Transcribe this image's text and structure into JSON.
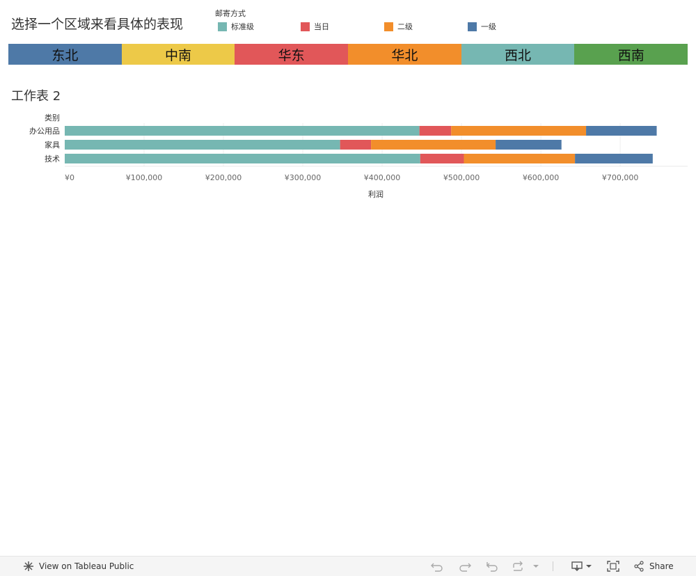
{
  "dashboard": {
    "title": "选择一个区域来看具体的表现"
  },
  "legend": {
    "title": "邮寄方式",
    "items": [
      {
        "label": "标准级",
        "color": "#76b7b2"
      },
      {
        "label": "当日",
        "color": "#e15759"
      },
      {
        "label": "二级",
        "color": "#f28e2b"
      },
      {
        "label": "一级",
        "color": "#4e79a7"
      }
    ]
  },
  "regions": [
    {
      "label": "东北",
      "color": "#4e79a7"
    },
    {
      "label": "中南",
      "color": "#edc948"
    },
    {
      "label": "华东",
      "color": "#e15759"
    },
    {
      "label": "华北",
      "color": "#f28e2b"
    },
    {
      "label": "西北",
      "color": "#76b7b2"
    },
    {
      "label": "西南",
      "color": "#59a14f"
    }
  ],
  "sheet": {
    "title": "工作表 2"
  },
  "chart_data": {
    "type": "bar",
    "orientation": "horizontal",
    "stacked": true,
    "categories_header": "类别",
    "categories": [
      "办公用品",
      "家具",
      "技术"
    ],
    "series": [
      {
        "name": "标准级",
        "color": "#76b7b2",
        "values": [
          447000,
          347000,
          448000
        ]
      },
      {
        "name": "当日",
        "color": "#e15759",
        "values": [
          40000,
          39000,
          55000
        ]
      },
      {
        "name": "二级",
        "color": "#f28e2b",
        "values": [
          170000,
          157000,
          140000
        ]
      },
      {
        "name": "一级",
        "color": "#4e79a7",
        "values": [
          89000,
          83000,
          98000
        ]
      }
    ],
    "xlabel": "利润",
    "xlim": [
      0,
      785000
    ],
    "xticks": [
      0,
      100000,
      200000,
      300000,
      400000,
      500000,
      600000,
      700000
    ],
    "xtick_labels": [
      "¥0",
      "¥100,000",
      "¥200,000",
      "¥300,000",
      "¥400,000",
      "¥500,000",
      "¥600,000",
      "¥700,000"
    ],
    "grid": true
  },
  "toolbar": {
    "view_label": "View on Tableau Public",
    "share_label": "Share"
  }
}
